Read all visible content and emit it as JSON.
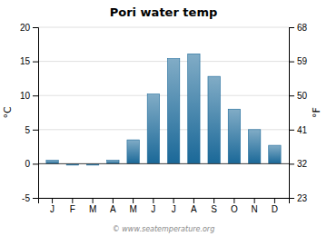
{
  "chart_data": {
    "type": "bar",
    "title": "Pori water temp",
    "categories": [
      "J",
      "F",
      "M",
      "A",
      "M",
      "J",
      "J",
      "A",
      "S",
      "O",
      "N",
      "D"
    ],
    "values": [
      0.5,
      -0.2,
      -0.2,
      0.5,
      3.5,
      10.2,
      15.4,
      16.1,
      12.8,
      8.0,
      5.0,
      2.7
    ],
    "color": "#1a6898",
    "ylabel": "°C",
    "y2label": "°F",
    "ylim": [
      -5,
      20
    ],
    "yticks": [
      -5,
      0,
      5,
      10,
      15,
      20
    ],
    "y2lim": [
      23,
      68
    ],
    "y2ticks": [
      23,
      32,
      41,
      50,
      59,
      68
    ],
    "grid": true,
    "annotations": [
      "© www.seatemperature.org"
    ]
  }
}
